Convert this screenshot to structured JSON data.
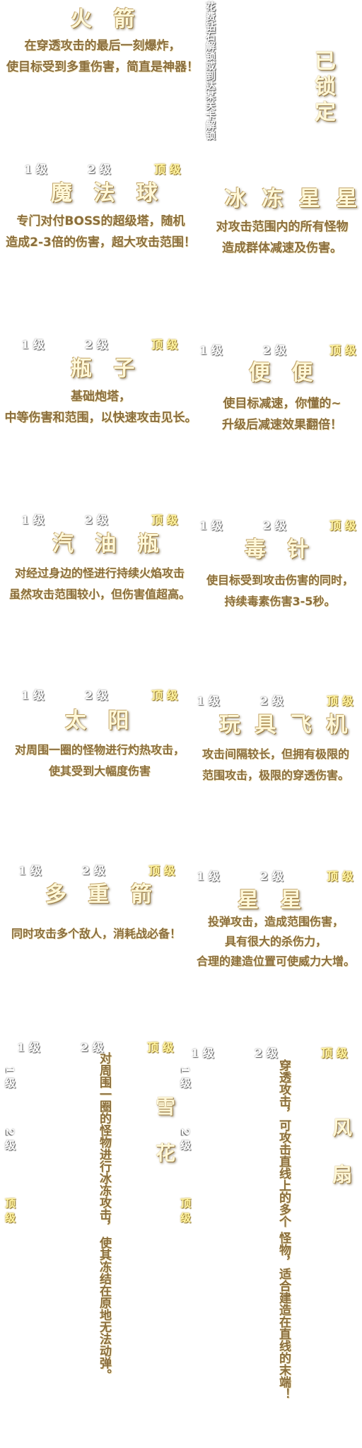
{
  "status": {
    "locked_label": "已锁定",
    "unlock_hint": "花费钻石解锁或到达某关卡解锁"
  },
  "levels": {
    "l1": "1 级",
    "l2": "2 级",
    "top": "顶 级"
  },
  "cards": [
    {
      "id": "rocket",
      "name": "火 箭",
      "desc": [
        "在穿透攻击的最后一刻爆炸，",
        "使目标受到多重伤害，简直是神器！"
      ]
    },
    {
      "id": "magic-ball",
      "name": "魔 法 球",
      "desc": [
        "专门对付BOSS的超级塔，随机",
        "造成2-3倍的伤害，超大攻击范围！"
      ]
    },
    {
      "id": "ice-star",
      "name": "冰 冻 星 星",
      "desc": [
        "对攻击范围内的所有怪物",
        "造成群体减速及伤害。"
      ]
    },
    {
      "id": "bottle",
      "name": "瓶 子",
      "desc": [
        "基础炮塔，",
        "中等伤害和范围，以快速攻击见长。"
      ]
    },
    {
      "id": "poop",
      "name": "便 便",
      "desc": [
        "使目标减速，你懂的~",
        "升级后减速效果翻倍！"
      ]
    },
    {
      "id": "gas-bottle",
      "name": "汽 油 瓶",
      "desc": [
        "对经过身边的怪进行持续火焰攻击",
        "虽然攻击范围较小，但伤害值超高。"
      ]
    },
    {
      "id": "poison-needle",
      "name": "毒 针",
      "desc": [
        "使目标受到攻击伤害的同时，",
        "持续毒素伤害3-5秒。"
      ]
    },
    {
      "id": "sun",
      "name": "太 阳",
      "desc": [
        "对周围一圈的怪物进行灼热攻击，",
        "使其受到大幅度伤害"
      ]
    },
    {
      "id": "toy-plane",
      "name": "玩 具 飞 机",
      "desc": [
        "攻击间隔较长，但拥有极限的",
        "范围攻击，极限的穿透伤害。"
      ]
    },
    {
      "id": "multi-arrow",
      "name": "多 重 箭",
      "desc": [
        "同时攻击多个敌人，消耗战必备！"
      ]
    },
    {
      "id": "star",
      "name": "星 星",
      "desc": [
        "投弹攻击，造成范围伤害，",
        "具有很大的杀伤力，",
        "合理的建造位置可使威力大增。"
      ]
    },
    {
      "id": "snowflake",
      "name": "雪 花",
      "desc": [
        "对周围一圈的怪物进行冰冻攻击，",
        "使其冻结在原地无法动弹。"
      ]
    },
    {
      "id": "fan",
      "name": "风 扇",
      "desc": [
        "穿透攻击，可攻击直线上的多个",
        "怪物，适合建造在直线的末端！"
      ]
    }
  ]
}
